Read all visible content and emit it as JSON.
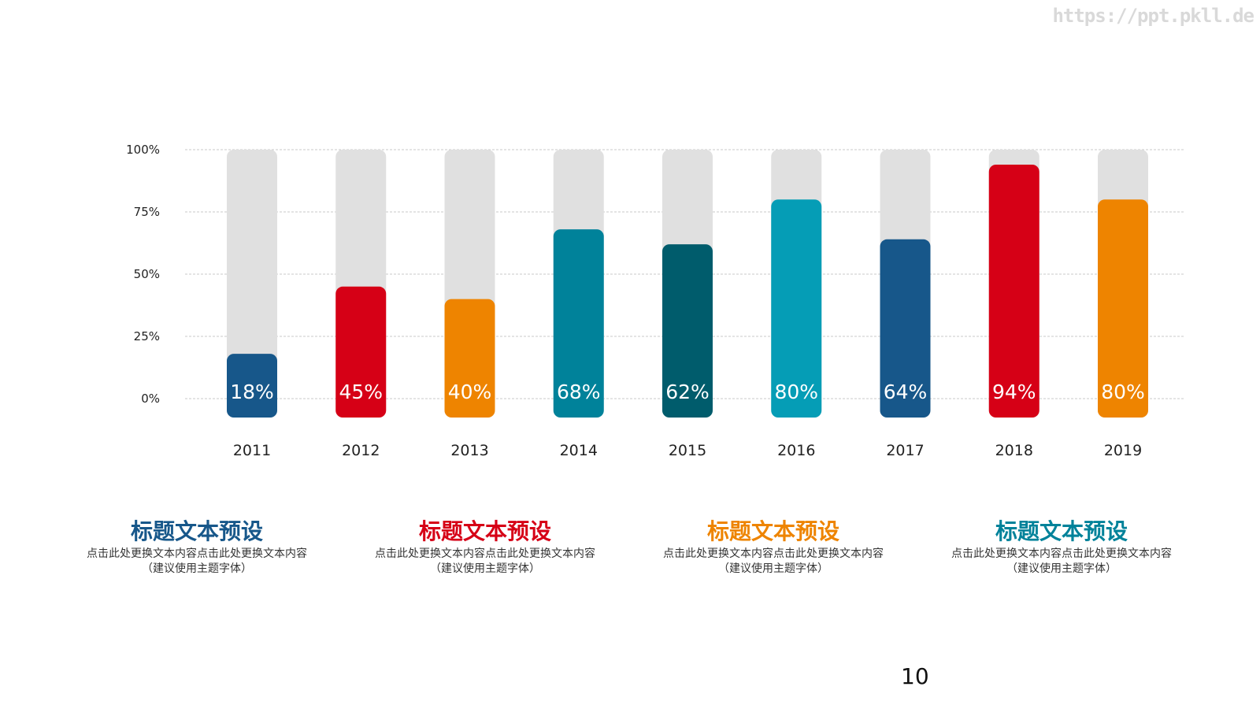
{
  "watermark": "https://ppt.pkll.de",
  "page_number": "10",
  "colors": {
    "blue": "#17578a",
    "red": "#d60016",
    "orange": "#ee8400",
    "teal": "#00829a",
    "dark_teal": "#005c6c",
    "light_teal": "#059db6",
    "track": "#e0e0e0",
    "grid": "#c8c8c8"
  },
  "chart_data": {
    "type": "bar",
    "categories": [
      "2011",
      "2012",
      "2013",
      "2014",
      "2015",
      "2016",
      "2017",
      "2018",
      "2019"
    ],
    "values": [
      18,
      45,
      40,
      68,
      62,
      80,
      64,
      94,
      80
    ],
    "value_labels": [
      "18%",
      "45%",
      "40%",
      "68%",
      "62%",
      "80%",
      "64%",
      "94%",
      "80%"
    ],
    "bar_colors": [
      "#17578a",
      "#d60016",
      "#ee8400",
      "#00829a",
      "#005c6c",
      "#059db6",
      "#17578a",
      "#d60016",
      "#ee8400"
    ],
    "y_ticks": [
      "100%",
      "75%",
      "50%",
      "25%",
      "0%"
    ],
    "y_tick_values": [
      100,
      75,
      50,
      25,
      0
    ],
    "ylim": [
      0,
      100
    ],
    "grid": true,
    "title": "",
    "xlabel": "",
    "ylabel": ""
  },
  "columns": [
    {
      "title": "标题文本预设",
      "body": "点击此处更换文本内容点击此处更换文本内容",
      "note": "（建议使用主题字体）",
      "color": "#17578a"
    },
    {
      "title": "标题文本预设",
      "body": "点击此处更换文本内容点击此处更换文本内容",
      "note": "（建议使用主题字体）",
      "color": "#d60016"
    },
    {
      "title": "标题文本预设",
      "body": "点击此处更换文本内容点击此处更换文本内容",
      "note": "（建议使用主题字体）",
      "color": "#ee8400"
    },
    {
      "title": "标题文本预设",
      "body": "点击此处更换文本内容点击此处更换文本内容",
      "note": "（建议使用主题字体）",
      "color": "#00829a"
    }
  ]
}
